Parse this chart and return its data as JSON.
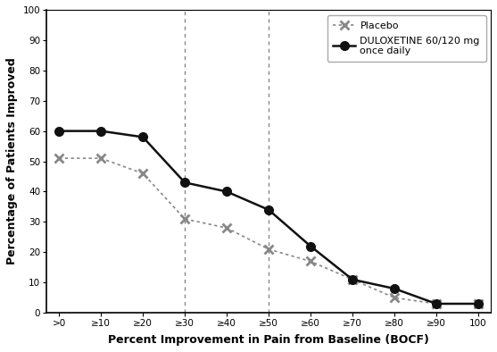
{
  "x_labels": [
    ">0",
    "≥10",
    "≥20",
    "≥30",
    "≥40",
    "≥50",
    "≥60",
    "≥70",
    "≥80",
    "≥90",
    "100"
  ],
  "x_values": [
    0,
    1,
    2,
    3,
    4,
    5,
    6,
    7,
    8,
    9,
    10
  ],
  "placebo_y": [
    51,
    51,
    46,
    31,
    28,
    21,
    17,
    11,
    5,
    3,
    3
  ],
  "duloxetine_y": [
    60,
    60,
    58,
    43,
    40,
    34,
    22,
    11,
    8,
    3,
    3
  ],
  "vline_positions": [
    3,
    5
  ],
  "xlabel": "Percent Improvement in Pain from Baseline (BOCF)",
  "ylabel": "Percentage of Patients Improved",
  "ylim": [
    0,
    100
  ],
  "yticks": [
    0,
    10,
    20,
    30,
    40,
    50,
    60,
    70,
    80,
    90,
    100
  ],
  "placebo_label": "Placebo",
  "duloxetine_label": "DULOXETINE 60/120 mg\nonce daily",
  "placebo_color": "#888888",
  "duloxetine_color": "#111111",
  "background_color": "#ffffff",
  "figsize": [
    5.57,
    3.94
  ],
  "dpi": 100
}
